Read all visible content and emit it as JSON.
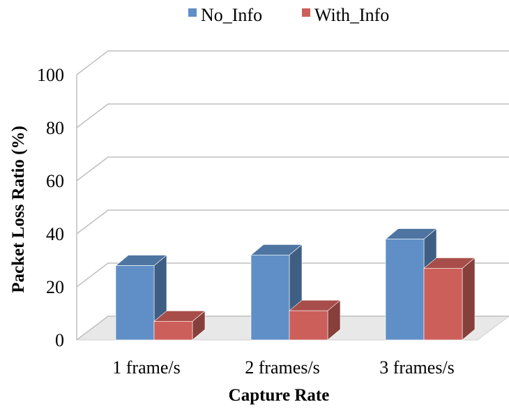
{
  "chart_data": {
    "type": "bar",
    "title": "",
    "xlabel": "Capture Rate",
    "ylabel": "Packet Loss Ratio (%)",
    "categories": [
      "1 frame/s",
      "2 frames/s",
      "3 frames/s"
    ],
    "series": [
      {
        "name": "No_Info",
        "color": "#5f8fc6",
        "values": [
          28,
          32,
          38
        ]
      },
      {
        "name": "With_Info",
        "color": "#cd5f5a",
        "values": [
          7,
          11,
          27
        ]
      }
    ],
    "ylim": [
      0,
      100
    ],
    "yticks": [
      0,
      20,
      40,
      60,
      80,
      100
    ],
    "grid": true,
    "legend_position": "top-center",
    "style": "3d-clustered-column"
  }
}
